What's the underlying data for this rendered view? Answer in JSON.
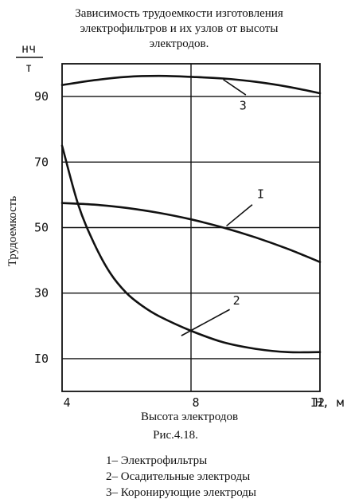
{
  "chart_data": {
    "type": "line",
    "title": [
      "Зависимость трудоемкости изготовления",
      "электрофильтров и их узлов от высоты",
      "электродов."
    ],
    "xlabel": "Высота электродов",
    "x_unit": "Н, м",
    "ylabel": "Трудоемкость",
    "y_unit_num": "нч",
    "y_unit_den": "т",
    "xlim": [
      4,
      12
    ],
    "ylim": [
      0,
      100
    ],
    "x_ticks": [
      {
        "value": 4,
        "label": "4"
      },
      {
        "value": 8,
        "label": "8"
      },
      {
        "value": 12,
        "label": "I2"
      }
    ],
    "y_ticks": [
      {
        "value": 10,
        "label": "I0"
      },
      {
        "value": 30,
        "label": "30"
      },
      {
        "value": 50,
        "label": "50"
      },
      {
        "value": 70,
        "label": "70"
      },
      {
        "value": 90,
        "label": "90"
      }
    ],
    "grid": true,
    "series": [
      {
        "name": "I",
        "x": [
          4,
          5,
          6,
          7,
          8,
          9,
          10,
          11,
          12
        ],
        "y": [
          57.5,
          57,
          56,
          54.5,
          52.5,
          50,
          47,
          43.5,
          39.5
        ]
      },
      {
        "name": "2",
        "x": [
          4,
          4.5,
          5,
          5.5,
          6,
          6.5,
          7,
          8,
          9,
          10,
          11,
          12
        ],
        "y": [
          75,
          57,
          45,
          36,
          30,
          26,
          23,
          18.5,
          15,
          13,
          12,
          12
        ]
      },
      {
        "name": "3",
        "x": [
          4,
          5,
          6,
          7,
          8,
          9,
          10,
          11,
          12
        ],
        "y": [
          93.5,
          95,
          96,
          96.3,
          96,
          95.5,
          94.5,
          93,
          91
        ]
      }
    ]
  },
  "caption": "Рис.4.18.",
  "legend": [
    "1– Электрофильтры",
    "2– Осадительные электроды",
    "3– Коронирующие электроды"
  ]
}
